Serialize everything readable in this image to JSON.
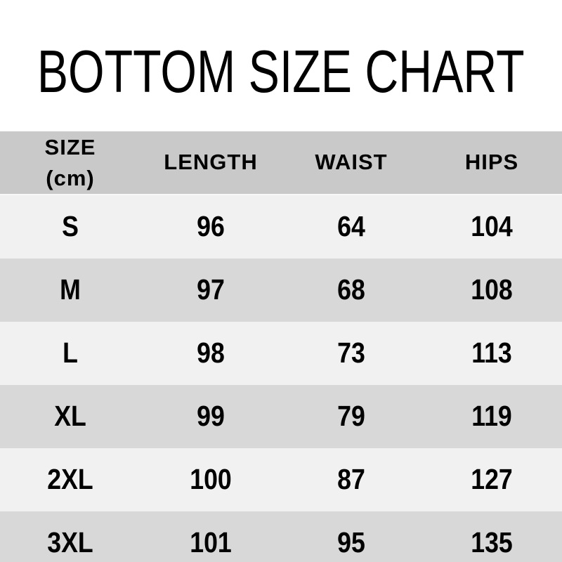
{
  "title": "BOTTOM SIZE CHART",
  "colors": {
    "background": "#ffffff",
    "header_row": "#c9c9c9",
    "row_light": "#f1f1f1",
    "row_dark": "#d8d8d8",
    "text": "#000000"
  },
  "table": {
    "columns": [
      {
        "label_line1": "SIZE",
        "label_line2": "(cm)"
      },
      {
        "label": "LENGTH"
      },
      {
        "label": "WAIST"
      },
      {
        "label": "HIPS"
      }
    ],
    "rows": [
      {
        "size": "S",
        "length": "96",
        "waist": "64",
        "hips": "104"
      },
      {
        "size": "M",
        "length": "97",
        "waist": "68",
        "hips": "108"
      },
      {
        "size": "L",
        "length": "98",
        "waist": "73",
        "hips": "113"
      },
      {
        "size": "XL",
        "length": "99",
        "waist": "79",
        "hips": "119"
      },
      {
        "size": "2XL",
        "length": "100",
        "waist": "87",
        "hips": "127"
      },
      {
        "size": "3XL",
        "length": "101",
        "waist": "95",
        "hips": "135"
      }
    ]
  },
  "chart_data": {
    "type": "table",
    "title": "BOTTOM SIZE CHART",
    "unit": "cm",
    "columns": [
      "SIZE (cm)",
      "LENGTH",
      "WAIST",
      "HIPS"
    ],
    "rows": [
      [
        "S",
        96,
        64,
        104
      ],
      [
        "M",
        97,
        68,
        108
      ],
      [
        "L",
        98,
        73,
        113
      ],
      [
        "XL",
        99,
        79,
        119
      ],
      [
        "2XL",
        100,
        87,
        127
      ],
      [
        "3XL",
        101,
        95,
        135
      ]
    ]
  }
}
